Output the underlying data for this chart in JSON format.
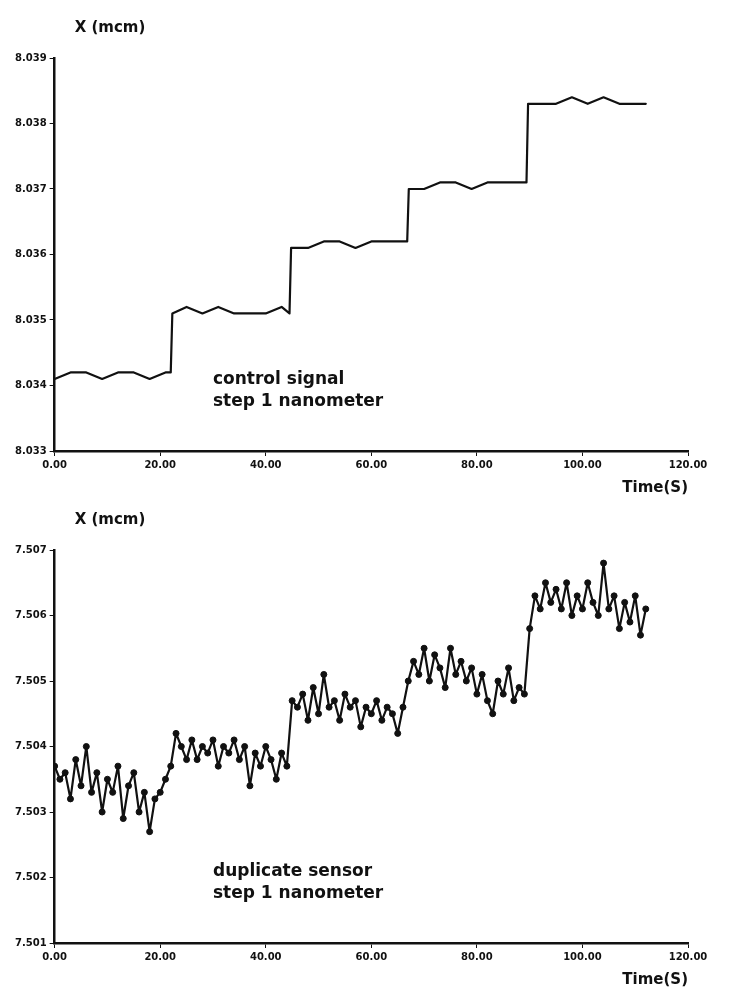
{
  "chart_data": [
    {
      "type": "line",
      "ylabel": "X (mcm)",
      "xlabel": "Time(S)",
      "annotations": [
        "control signal",
        "step 1 nanometer"
      ],
      "x": [
        0,
        3,
        6,
        9,
        12,
        15,
        18,
        21,
        22,
        22.3,
        25,
        28,
        31,
        34,
        37,
        40,
        43,
        44.5,
        44.8,
        48,
        51,
        54,
        57,
        60,
        63,
        66.8,
        67.1,
        70,
        73,
        76,
        79,
        82,
        85,
        89.4,
        89.7,
        92,
        95,
        98,
        101,
        104,
        107,
        110,
        112
      ],
      "series": [
        {
          "color": "#111111",
          "values": [
            8.0341,
            8.0342,
            8.0342,
            8.0341,
            8.0342,
            8.0342,
            8.0341,
            8.0342,
            8.0342,
            8.0351,
            8.0352,
            8.0351,
            8.0352,
            8.0351,
            8.0351,
            8.0351,
            8.0352,
            8.0351,
            8.0361,
            8.0361,
            8.0362,
            8.0362,
            8.0361,
            8.0362,
            8.0362,
            8.0362,
            8.037,
            8.037,
            8.0371,
            8.0371,
            8.037,
            8.0371,
            8.0371,
            8.0371,
            8.0383,
            8.0383,
            8.0383,
            8.0384,
            8.0383,
            8.0384,
            8.0383,
            8.0383,
            8.0383
          ]
        }
      ],
      "xlim": [
        0,
        120
      ],
      "xticks": [
        {
          "value": 0,
          "label": "0.00"
        },
        {
          "value": 20,
          "label": "20.00"
        },
        {
          "value": 40,
          "label": "40.00"
        },
        {
          "value": 60,
          "label": "60.00"
        },
        {
          "value": 80,
          "label": "80.00"
        },
        {
          "value": 100,
          "label": "100.00"
        },
        {
          "value": 120,
          "label": "120.00"
        }
      ],
      "ylim": [
        8.033,
        8.039
      ],
      "yticks": [
        8.033,
        8.034,
        8.035,
        8.036,
        8.037,
        8.038,
        8.039
      ]
    },
    {
      "type": "line",
      "ylabel": "X (mcm)",
      "xlabel": "Time(S)",
      "annotations": [
        "duplicate sensor",
        "step 1 nanometer"
      ],
      "marker": "circle",
      "x": [
        0,
        1,
        2,
        3,
        4,
        5,
        6,
        7,
        8,
        9,
        10,
        11,
        12,
        13,
        14,
        15,
        16,
        17,
        18,
        19,
        20,
        21,
        22,
        23,
        24,
        25,
        26,
        27,
        28,
        29,
        30,
        31,
        32,
        33,
        34,
        35,
        36,
        37,
        38,
        39,
        40,
        41,
        42,
        43,
        44,
        45,
        46,
        47,
        48,
        49,
        50,
        51,
        52,
        53,
        54,
        55,
        56,
        57,
        58,
        59,
        60,
        61,
        62,
        63,
        64,
        65,
        66,
        67,
        68,
        69,
        70,
        71,
        72,
        73,
        74,
        75,
        76,
        77,
        78,
        79,
        80,
        81,
        82,
        83,
        84,
        85,
        86,
        87,
        88,
        89,
        90,
        91,
        92,
        93,
        94,
        95,
        96,
        97,
        98,
        99,
        100,
        101,
        102,
        103,
        104,
        105,
        106,
        107,
        108,
        109,
        110,
        111,
        112
      ],
      "series": [
        {
          "color": "#111111",
          "values": [
            7.5037,
            7.5035,
            7.5036,
            7.5032,
            7.5038,
            7.5034,
            7.504,
            7.5033,
            7.5036,
            7.503,
            7.5035,
            7.5033,
            7.5037,
            7.5029,
            7.5034,
            7.5036,
            7.503,
            7.5033,
            7.5027,
            7.5032,
            7.5033,
            7.5035,
            7.5037,
            7.5042,
            7.504,
            7.5038,
            7.5041,
            7.5038,
            7.504,
            7.5039,
            7.5041,
            7.5037,
            7.504,
            7.5039,
            7.5041,
            7.5038,
            7.504,
            7.5034,
            7.5039,
            7.5037,
            7.504,
            7.5038,
            7.5035,
            7.5039,
            7.5037,
            7.5047,
            7.5046,
            7.5048,
            7.5044,
            7.5049,
            7.5045,
            7.5051,
            7.5046,
            7.5047,
            7.5044,
            7.5048,
            7.5046,
            7.5047,
            7.5043,
            7.5046,
            7.5045,
            7.5047,
            7.5044,
            7.5046,
            7.5045,
            7.5042,
            7.5046,
            7.505,
            7.5053,
            7.5051,
            7.5055,
            7.505,
            7.5054,
            7.5052,
            7.5049,
            7.5055,
            7.5051,
            7.5053,
            7.505,
            7.5052,
            7.5048,
            7.5051,
            7.5047,
            7.5045,
            7.505,
            7.5048,
            7.5052,
            7.5047,
            7.5049,
            7.5048,
            7.5058,
            7.5063,
            7.5061,
            7.5065,
            7.5062,
            7.5064,
            7.5061,
            7.5065,
            7.506,
            7.5063,
            7.5061,
            7.5065,
            7.5062,
            7.506,
            7.5068,
            7.5061,
            7.5063,
            7.5058,
            7.5062,
            7.5059,
            7.5063,
            7.5057,
            7.5061
          ]
        }
      ],
      "xlim": [
        0,
        120
      ],
      "xticks": [
        {
          "value": 0,
          "label": "0.00"
        },
        {
          "value": 20,
          "label": "20.00"
        },
        {
          "value": 40,
          "label": "40.00"
        },
        {
          "value": 60,
          "label": "60.00"
        },
        {
          "value": 80,
          "label": "80.00"
        },
        {
          "value": 100,
          "label": "100.00"
        },
        {
          "value": 120,
          "label": "120.00"
        }
      ],
      "ylim": [
        7.501,
        7.507
      ],
      "yticks": [
        7.501,
        7.502,
        7.503,
        7.504,
        7.505,
        7.506,
        7.507
      ]
    }
  ]
}
